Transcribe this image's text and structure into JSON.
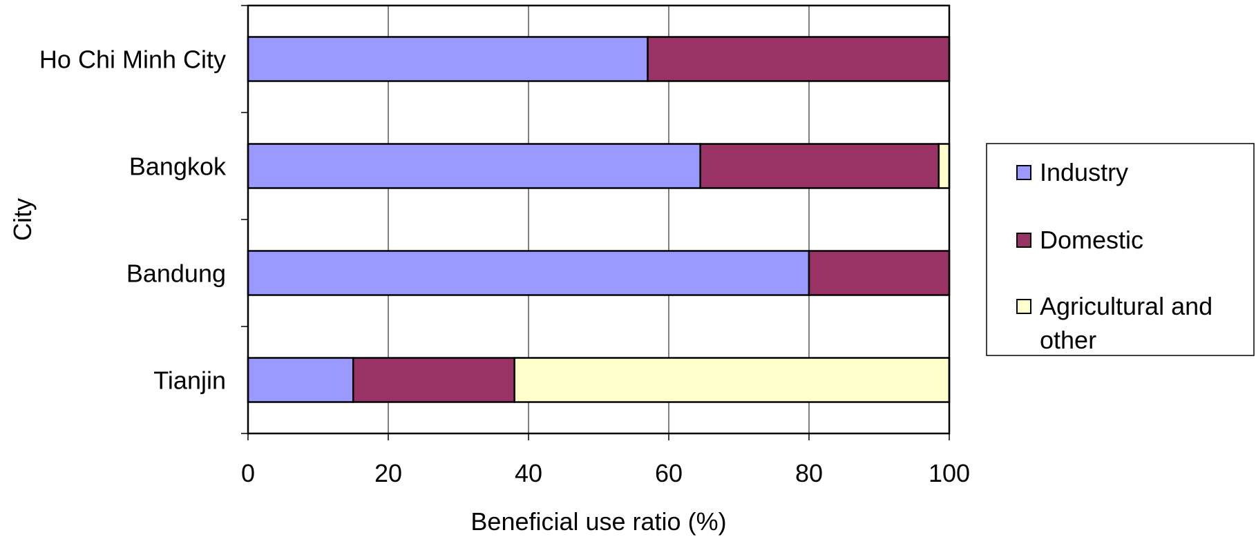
{
  "chart_data": {
    "type": "bar",
    "orientation": "horizontal",
    "stacked": true,
    "categories": [
      "Ho Chi Minh City",
      "Bangkok",
      "Bandung",
      "Tianjin"
    ],
    "series": [
      {
        "name": "Industry",
        "values": [
          57,
          64.5,
          80,
          15
        ],
        "color": "#9999FF"
      },
      {
        "name": "Domestic",
        "values": [
          43,
          34,
          20,
          23
        ],
        "color": "#993366"
      },
      {
        "name": "Agricultural and other",
        "values": [
          0,
          1.5,
          0,
          62
        ],
        "color": "#FFFFCC"
      }
    ],
    "xlabel": "Beneficial use ratio (%)",
    "ylabel": "City",
    "xlim": [
      0,
      100
    ],
    "xticks": [
      "0",
      "20",
      "40",
      "60",
      "80",
      "100"
    ],
    "grid": "vertical",
    "legend_position": "right",
    "legend_labels": [
      "Industry",
      "Domestic",
      "Agricultural and",
      "other"
    ]
  }
}
